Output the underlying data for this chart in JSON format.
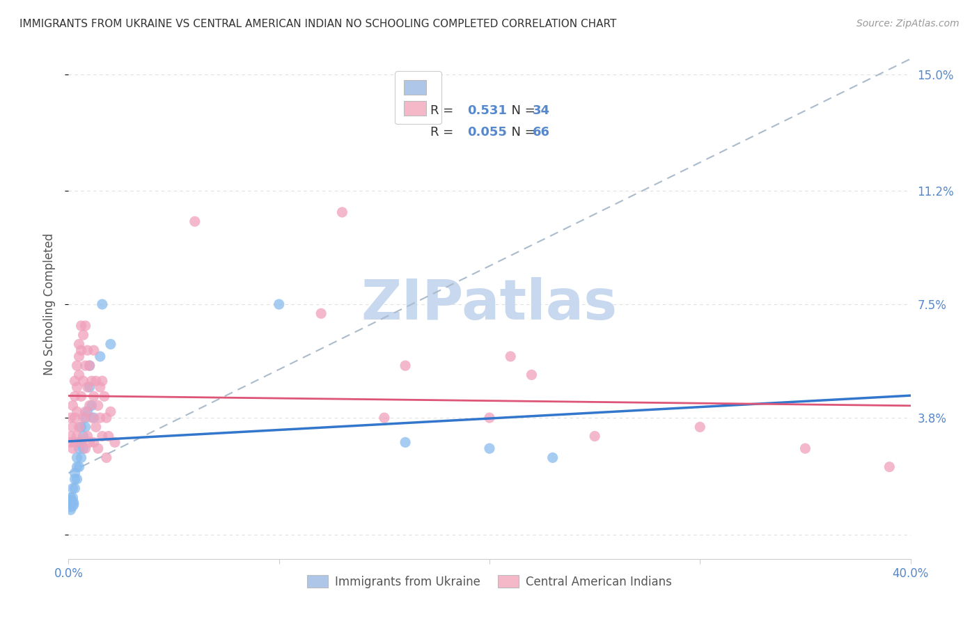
{
  "title": "IMMIGRANTS FROM UKRAINE VS CENTRAL AMERICAN INDIAN NO SCHOOLING COMPLETED CORRELATION CHART",
  "source": "Source: ZipAtlas.com",
  "ylabel": "No Schooling Completed",
  "yticks": [
    0.0,
    0.038,
    0.075,
    0.112,
    0.15
  ],
  "ytick_labels": [
    "",
    "3.8%",
    "7.5%",
    "11.2%",
    "15.0%"
  ],
  "xlim": [
    0.0,
    0.4
  ],
  "ylim": [
    -0.008,
    0.158
  ],
  "legend_box_color_blue": "#aec6e8",
  "legend_box_color_pink": "#f4b8c8",
  "R_blue": "0.531",
  "N_blue": "34",
  "R_pink": "0.055",
  "N_pink": "66",
  "ukraine_points": [
    [
      0.001,
      0.01
    ],
    [
      0.001,
      0.012
    ],
    [
      0.001,
      0.008
    ],
    [
      0.002,
      0.015
    ],
    [
      0.002,
      0.01
    ],
    [
      0.002,
      0.012
    ],
    [
      0.003,
      0.018
    ],
    [
      0.003,
      0.02
    ],
    [
      0.003,
      0.015
    ],
    [
      0.004,
      0.022
    ],
    [
      0.004,
      0.018
    ],
    [
      0.004,
      0.025
    ],
    [
      0.005,
      0.028
    ],
    [
      0.005,
      0.022
    ],
    [
      0.005,
      0.03
    ],
    [
      0.006,
      0.025
    ],
    [
      0.006,
      0.03
    ],
    [
      0.006,
      0.035
    ],
    [
      0.007,
      0.032
    ],
    [
      0.007,
      0.028
    ],
    [
      0.008,
      0.038
    ],
    [
      0.008,
      0.035
    ],
    [
      0.009,
      0.04
    ],
    [
      0.01,
      0.055
    ],
    [
      0.01,
      0.048
    ],
    [
      0.011,
      0.042
    ],
    [
      0.012,
      0.038
    ],
    [
      0.015,
      0.058
    ],
    [
      0.016,
      0.075
    ],
    [
      0.02,
      0.062
    ],
    [
      0.1,
      0.075
    ],
    [
      0.16,
      0.03
    ],
    [
      0.2,
      0.028
    ],
    [
      0.23,
      0.025
    ]
  ],
  "caindian_points": [
    [
      0.001,
      0.03
    ],
    [
      0.001,
      0.038
    ],
    [
      0.001,
      0.032
    ],
    [
      0.002,
      0.042
    ],
    [
      0.002,
      0.035
    ],
    [
      0.002,
      0.028
    ],
    [
      0.003,
      0.05
    ],
    [
      0.003,
      0.045
    ],
    [
      0.003,
      0.038
    ],
    [
      0.003,
      0.03
    ],
    [
      0.004,
      0.055
    ],
    [
      0.004,
      0.048
    ],
    [
      0.004,
      0.04
    ],
    [
      0.004,
      0.032
    ],
    [
      0.005,
      0.062
    ],
    [
      0.005,
      0.058
    ],
    [
      0.005,
      0.052
    ],
    [
      0.005,
      0.035
    ],
    [
      0.006,
      0.068
    ],
    [
      0.006,
      0.06
    ],
    [
      0.006,
      0.045
    ],
    [
      0.006,
      0.03
    ],
    [
      0.007,
      0.065
    ],
    [
      0.007,
      0.05
    ],
    [
      0.007,
      0.038
    ],
    [
      0.008,
      0.068
    ],
    [
      0.008,
      0.055
    ],
    [
      0.008,
      0.04
    ],
    [
      0.008,
      0.028
    ],
    [
      0.009,
      0.06
    ],
    [
      0.009,
      0.048
    ],
    [
      0.009,
      0.032
    ],
    [
      0.01,
      0.055
    ],
    [
      0.01,
      0.042
    ],
    [
      0.01,
      0.03
    ],
    [
      0.011,
      0.05
    ],
    [
      0.011,
      0.038
    ],
    [
      0.012,
      0.06
    ],
    [
      0.012,
      0.045
    ],
    [
      0.012,
      0.03
    ],
    [
      0.013,
      0.05
    ],
    [
      0.013,
      0.035
    ],
    [
      0.014,
      0.042
    ],
    [
      0.014,
      0.028
    ],
    [
      0.015,
      0.048
    ],
    [
      0.015,
      0.038
    ],
    [
      0.016,
      0.05
    ],
    [
      0.016,
      0.032
    ],
    [
      0.017,
      0.045
    ],
    [
      0.018,
      0.038
    ],
    [
      0.018,
      0.025
    ],
    [
      0.019,
      0.032
    ],
    [
      0.02,
      0.04
    ],
    [
      0.022,
      0.03
    ],
    [
      0.06,
      0.102
    ],
    [
      0.12,
      0.072
    ],
    [
      0.13,
      0.105
    ],
    [
      0.15,
      0.038
    ],
    [
      0.16,
      0.055
    ],
    [
      0.2,
      0.038
    ],
    [
      0.21,
      0.058
    ],
    [
      0.22,
      0.052
    ],
    [
      0.25,
      0.032
    ],
    [
      0.3,
      0.035
    ],
    [
      0.35,
      0.028
    ],
    [
      0.39,
      0.022
    ]
  ],
  "watermark_text": "ZIPatlas",
  "watermark_color": "#c8d8ee",
  "background_color": "#ffffff",
  "blue_scatter_color": "#88bbee",
  "pink_scatter_color": "#f0a0bb",
  "blue_line_color": "#3377cc",
  "pink_line_color": "#dd5577",
  "dashed_line_color": "#aabbcc",
  "grid_color": "#e0e0e0",
  "tick_label_color": "#5588cc"
}
